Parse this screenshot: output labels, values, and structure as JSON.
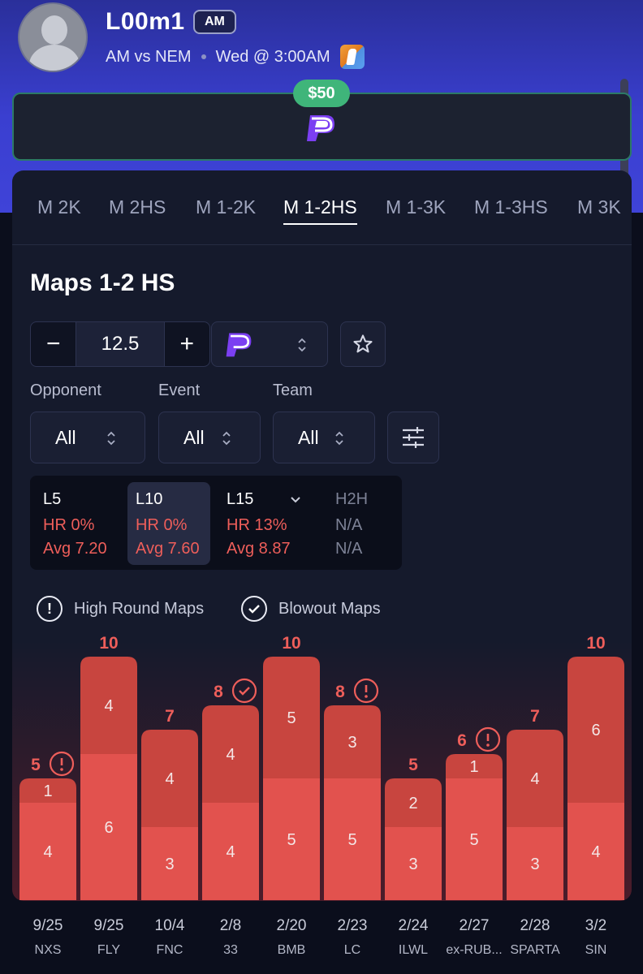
{
  "header": {
    "player_name": "L00m1",
    "team_badge": "AM",
    "matchup": "AM vs NEM",
    "time": "Wed @ 3:00AM",
    "game_icon": "counter-strike-icon"
  },
  "bet_bar": {
    "amount": "$50",
    "logo": "prizepicks-logo"
  },
  "tabs": [
    {
      "label": "M 2K",
      "active": false
    },
    {
      "label": "M 2HS",
      "active": false
    },
    {
      "label": "M 1-2K",
      "active": false
    },
    {
      "label": "M 1-2HS",
      "active": true
    },
    {
      "label": "M 1-3K",
      "active": false
    },
    {
      "label": "M 1-3HS",
      "active": false
    },
    {
      "label": "M 3K",
      "active": false
    }
  ],
  "section": {
    "title": "Maps 1-2 HS",
    "line_value": "12.5",
    "minus": "−",
    "plus": "+"
  },
  "filters": [
    {
      "label": "Opponent",
      "value": "All"
    },
    {
      "label": "Event",
      "value": "All"
    },
    {
      "label": "Team",
      "value": "All"
    }
  ],
  "stats": [
    {
      "label": "L5",
      "hr": "HR 0%",
      "avg": "Avg 7.20",
      "active": false
    },
    {
      "label": "L10",
      "hr": "HR 0%",
      "avg": "Avg 7.60",
      "active": true
    },
    {
      "label": "L15",
      "hr": "HR 13%",
      "avg": "Avg 8.87",
      "active": false
    },
    {
      "label": "H2H",
      "hr": "N/A",
      "avg": "N/A",
      "active": false
    }
  ],
  "legend": {
    "high_round": "High Round Maps",
    "blowout": "Blowout Maps"
  },
  "colors": {
    "accent": "#3fb57a",
    "bar_bottom": "#e2524e",
    "bar_top": "#c8453f",
    "miss_red": "#ee5e5a"
  },
  "chart_data": {
    "type": "bar",
    "stacked": true,
    "categories": [
      "9/25",
      "9/25",
      "10/4",
      "2/8",
      "2/20",
      "2/23",
      "2/24",
      "2/27",
      "2/28",
      "3/2"
    ],
    "opponents": [
      "NXS",
      "FLY",
      "FNC",
      "33",
      "BMB",
      "LC",
      "ILWL",
      "ex-RUB...",
      "SPARTA",
      "SIN"
    ],
    "series": [
      {
        "values": [
          4,
          6,
          3,
          4,
          5,
          5,
          3,
          5,
          3,
          4
        ]
      },
      {
        "values": [
          1,
          4,
          4,
          4,
          5,
          3,
          2,
          1,
          4,
          6
        ]
      }
    ],
    "totals": [
      5,
      10,
      7,
      8,
      10,
      8,
      5,
      6,
      7,
      10
    ],
    "markers": [
      "high-round",
      "",
      "",
      "blowout",
      "",
      "high-round",
      "",
      "high-round",
      "",
      ""
    ],
    "line": 12.5
  }
}
